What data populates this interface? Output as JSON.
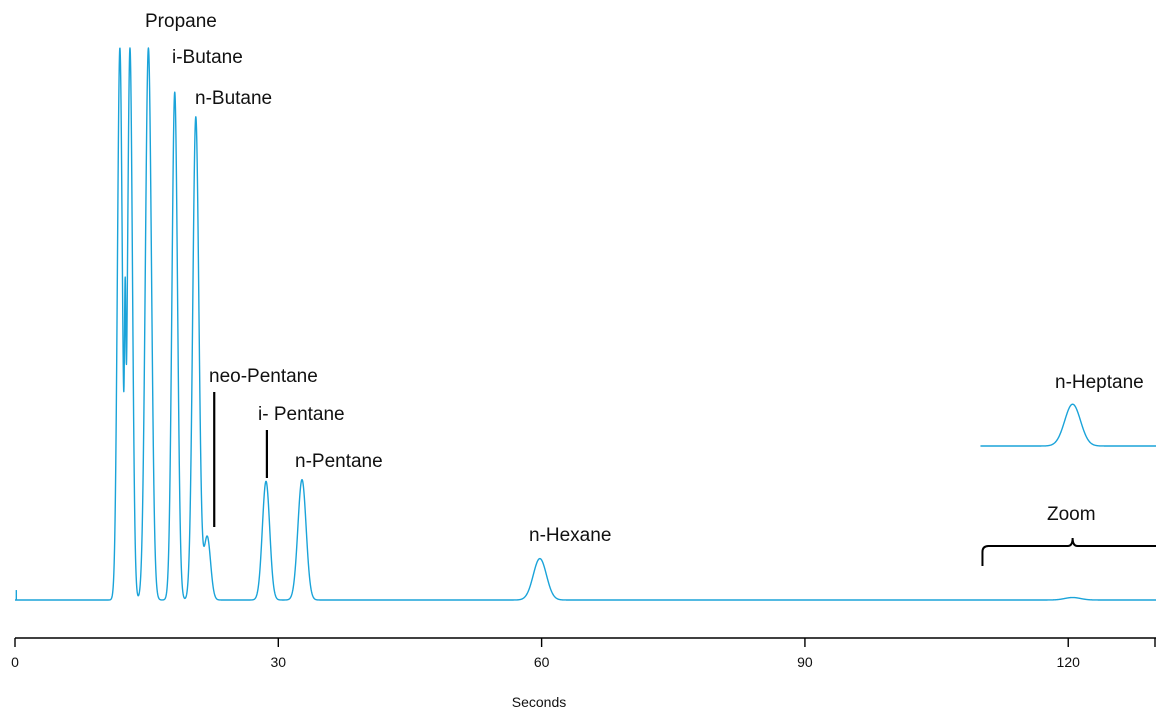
{
  "chart_data": {
    "type": "line",
    "xlabel": "Seconds",
    "ylabel": "",
    "xlim": [
      0,
      130
    ],
    "ylim": [
      0,
      100
    ],
    "x_ticks": [
      0,
      30,
      60,
      90,
      120
    ],
    "tick_labels": [
      "0",
      "30",
      "60",
      "90",
      "120"
    ],
    "grid": false,
    "line_color": "#1aa3d9",
    "series": [
      {
        "peaks": [
          {
            "t": 11.95,
            "height": 100,
            "width": 0.28,
            "clipped": true
          },
          {
            "t": 12.55,
            "height": 34,
            "width": 0.08
          },
          {
            "t": 13.1,
            "height": 100,
            "width": 0.28,
            "clipped": true
          },
          {
            "t": 15.2,
            "height": 100,
            "width": 0.35,
            "clipped": true
          },
          {
            "t": 18.2,
            "height": 92,
            "width": 0.32
          },
          {
            "t": 20.6,
            "height": 87.5,
            "width": 0.35
          },
          {
            "t": 21.9,
            "height": 11.5,
            "width": 0.38
          },
          {
            "t": 28.6,
            "height": 21.5,
            "width": 0.42
          },
          {
            "t": 32.7,
            "height": 21.8,
            "width": 0.47
          },
          {
            "t": 59.8,
            "height": 7.5,
            "width": 0.75
          },
          {
            "t": 120.5,
            "height": 0.45,
            "width": 0.9
          }
        ],
        "dips": [
          {
            "t": 12.7,
            "depth": 2
          }
        ]
      }
    ],
    "inset": {
      "label": "n-Heptane",
      "bracket_label": "Zoom",
      "x_range": [
        110,
        130
      ],
      "peak": {
        "t": 120.5,
        "height": 7.6,
        "width": 0.9
      }
    },
    "annotations": [
      {
        "text": "Propane"
      },
      {
        "text": "i-Butane"
      },
      {
        "text": "n-Butane"
      },
      {
        "text": "neo-Pentane",
        "marker_x": 22.7
      },
      {
        "text": "i- Pentane",
        "marker_x": 28.7
      },
      {
        "text": "n-Pentane"
      },
      {
        "text": "n-Hexane"
      }
    ]
  }
}
